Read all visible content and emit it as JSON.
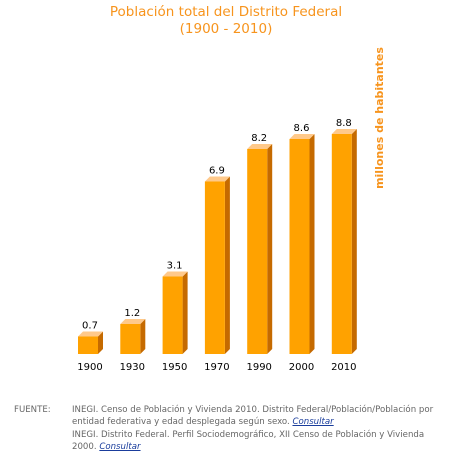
{
  "chart_data": {
    "type": "bar",
    "title": "Población total del Distrito Federal",
    "subtitle": "(1900 - 2010)",
    "ylabel": "millones de habitantes",
    "xlabel": "",
    "categories": [
      "1900",
      "1930",
      "1950",
      "1970",
      "1990",
      "2000",
      "2010"
    ],
    "values": [
      0.7,
      1.2,
      3.1,
      6.9,
      8.2,
      8.6,
      8.8
    ],
    "ylim": [
      0,
      10
    ],
    "grid": false,
    "legend": "none",
    "colors": {
      "bar_front": "#FFA200",
      "bar_side": "#C56A00",
      "bar_top": "#FFC98A",
      "title": "#F7941D"
    }
  },
  "source": {
    "label": "FUENTE:",
    "lines": [
      {
        "text": "INEGI. Censo de Población y Vivienda 2010. Distrito Federal/Población/Población por entidad federativa y edad desplegada según sexo. ",
        "link": "Consultar"
      },
      {
        "text": "INEGI. Distrito Federal. Perfil Sociodemográfico, XII Censo de Población y Vivienda 2000. ",
        "link": "Consultar"
      }
    ]
  }
}
